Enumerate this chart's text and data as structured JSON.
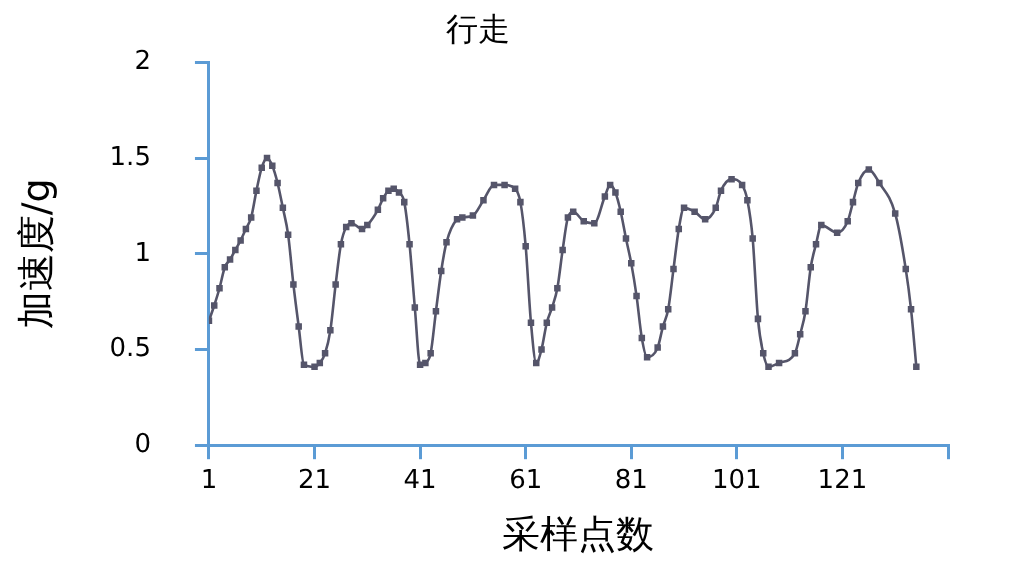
{
  "chart_data": {
    "type": "line",
    "title": "行走",
    "xlabel": "采样点数",
    "ylabel": "加速度/g",
    "xlim": [
      1,
      141
    ],
    "xticks": [
      1,
      21,
      41,
      61,
      81,
      101,
      121,
      {
        "value": 141,
        "label": null
      }
    ],
    "ylim": [
      0,
      2
    ],
    "yticks": [
      0,
      0.5,
      1,
      1.5,
      2
    ],
    "grid": false,
    "legend": false,
    "marker": "square",
    "line_style": "solid",
    "series": [
      {
        "color": "#55556a",
        "x": [
          1,
          2,
          3,
          4,
          5,
          6,
          7,
          8,
          9,
          10,
          11,
          12,
          13,
          14,
          15,
          16,
          17,
          18,
          19,
          21,
          22,
          23,
          24,
          25,
          26,
          27,
          28,
          30,
          31,
          33,
          34,
          35,
          36,
          37,
          38,
          39,
          40,
          41,
          42,
          43,
          44,
          45,
          46,
          48,
          49,
          51,
          53,
          55,
          57,
          59,
          60,
          61,
          62,
          63,
          64,
          65,
          66,
          67,
          68,
          69,
          70,
          72,
          74,
          76,
          77,
          78,
          79,
          80,
          81,
          82,
          83,
          84,
          86,
          87,
          88,
          89,
          90,
          91,
          93,
          95,
          97,
          98,
          100,
          102,
          103,
          104,
          105,
          106,
          107,
          109,
          112,
          113,
          114,
          115,
          116,
          117,
          120,
          122,
          123,
          124,
          126,
          128,
          131,
          133,
          134,
          135
        ],
        "values": [
          0.65,
          0.73,
          0.82,
          0.93,
          0.97,
          1.02,
          1.07,
          1.13,
          1.19,
          1.33,
          1.45,
          1.5,
          1.46,
          1.37,
          1.24,
          1.1,
          0.84,
          0.62,
          0.42,
          0.41,
          0.43,
          0.48,
          0.6,
          0.84,
          1.05,
          1.14,
          1.16,
          1.13,
          1.15,
          1.23,
          1.29,
          1.33,
          1.34,
          1.32,
          1.27,
          1.05,
          0.72,
          0.42,
          0.43,
          0.48,
          0.7,
          0.91,
          1.06,
          1.18,
          1.19,
          1.2,
          1.28,
          1.36,
          1.36,
          1.34,
          1.27,
          1.04,
          0.64,
          0.43,
          0.5,
          0.64,
          0.72,
          0.82,
          1.02,
          1.19,
          1.22,
          1.17,
          1.16,
          1.3,
          1.36,
          1.32,
          1.22,
          1.08,
          0.95,
          0.78,
          0.56,
          0.46,
          0.51,
          0.62,
          0.71,
          0.92,
          1.13,
          1.24,
          1.22,
          1.18,
          1.24,
          1.33,
          1.39,
          1.36,
          1.28,
          1.08,
          0.66,
          0.48,
          0.41,
          0.43,
          0.48,
          0.58,
          0.7,
          0.93,
          1.05,
          1.15,
          1.11,
          1.17,
          1.27,
          1.37,
          1.44,
          1.37,
          1.21,
          0.92,
          0.71,
          0.41
        ]
      }
    ]
  }
}
